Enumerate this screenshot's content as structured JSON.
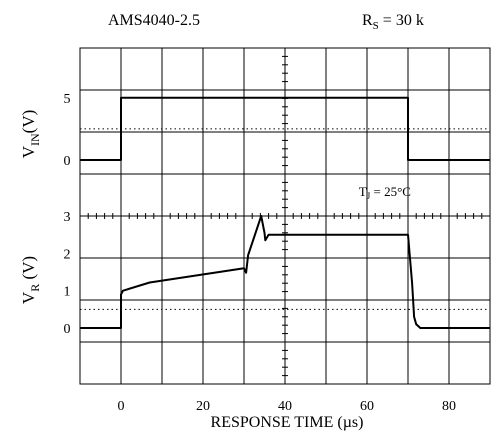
{
  "chart_data": {
    "type": "line",
    "title_left": "AMS4040-2.5",
    "title_right": {
      "main": "R",
      "sub": "S",
      "rest": " = 30 k"
    },
    "xlabel": "RESPONSE TIME (µs)",
    "xlim": [
      -10,
      90
    ],
    "x_ticks": [
      0,
      20,
      40,
      60,
      80
    ],
    "x_tick_labels": [
      "0",
      "20",
      "40",
      "60",
      "80"
    ],
    "grid": true,
    "panels": [
      {
        "id": "vin",
        "ylabel": {
          "main": "V",
          "sub": "IN",
          "rest": "(V)"
        },
        "ylim": [
          -4.5,
          9
        ],
        "y_tick_labels": [
          {
            "value": 5,
            "label": "5"
          },
          {
            "value": 0,
            "label": "0"
          }
        ],
        "dotted_level": 2.5,
        "annotation": {
          "main": "T",
          "sub": "J",
          "rest": " = 25°C",
          "x": 58,
          "y": -2.9
        },
        "series": [
          {
            "x": [
              -10,
              0,
              0,
              70,
              70,
              90
            ],
            "y": [
              0,
              0,
              5,
              5,
              0,
              0
            ]
          }
        ]
      },
      {
        "id": "vr",
        "ylabel": {
          "main": "V",
          "sub": "R",
          "rest": " (V)"
        },
        "ylim": [
          -1.5,
          3
        ],
        "y_tick_labels": [
          {
            "value": 3,
            "label": "3"
          },
          {
            "value": 2,
            "label": "2"
          },
          {
            "value": 1,
            "label": "1"
          },
          {
            "value": 0,
            "label": "0"
          }
        ],
        "dotted_level": 0.5,
        "series": [
          {
            "x": [
              -10,
              0,
              0,
              0.5,
              7,
              30,
              30.5,
              31,
              34.2,
              35,
              35.2,
              36,
              70,
              71,
              71.5,
              72,
              73,
              90
            ],
            "y": [
              0,
              0,
              0.9,
              1.0,
              1.22,
              1.6,
              1.48,
              1.95,
              3.0,
              2.55,
              2.35,
              2.5,
              2.5,
              1.2,
              0.3,
              0.1,
              0,
              0
            ]
          }
        ]
      }
    ]
  }
}
